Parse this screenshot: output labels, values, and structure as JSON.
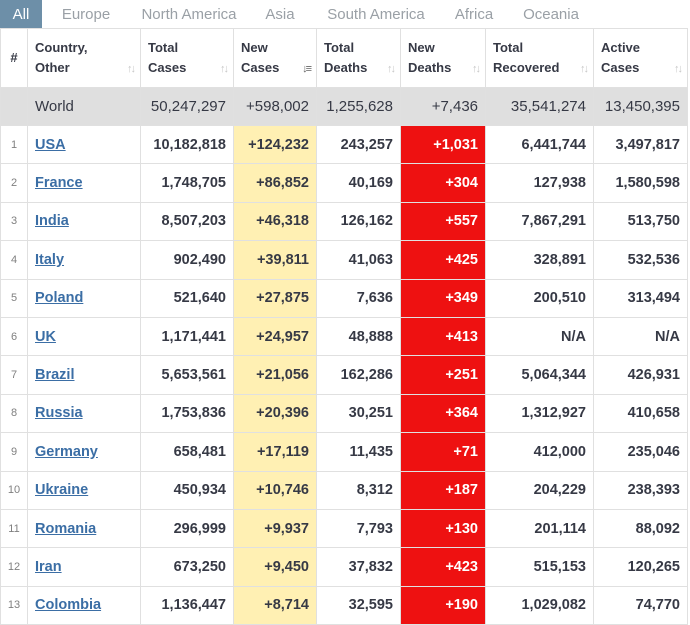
{
  "tabs": [
    "All",
    "Europe",
    "North America",
    "Asia",
    "South America",
    "Africa",
    "Oceania"
  ],
  "headers": {
    "idx": "#",
    "country": [
      "Country,",
      "Other"
    ],
    "total_cases": [
      "Total",
      "Cases"
    ],
    "new_cases": [
      "New",
      "Cases"
    ],
    "total_deaths": [
      "Total",
      "Deaths"
    ],
    "new_deaths": [
      "New",
      "Deaths"
    ],
    "total_recovered": [
      "Total",
      "Recovered"
    ],
    "active_cases": [
      "Active",
      "Cases"
    ]
  },
  "world": {
    "country": "World",
    "total_cases": "50,247,297",
    "new_cases": "+598,002",
    "total_deaths": "1,255,628",
    "new_deaths": "+7,436",
    "total_recovered": "35,541,274",
    "active_cases": "13,450,395"
  },
  "rows": [
    {
      "idx": "1",
      "country": "USA",
      "total_cases": "10,182,818",
      "new_cases": "+124,232",
      "total_deaths": "243,257",
      "new_deaths": "+1,031",
      "total_recovered": "6,441,744",
      "active_cases": "3,497,817"
    },
    {
      "idx": "2",
      "country": "France",
      "total_cases": "1,748,705",
      "new_cases": "+86,852",
      "total_deaths": "40,169",
      "new_deaths": "+304",
      "total_recovered": "127,938",
      "active_cases": "1,580,598"
    },
    {
      "idx": "3",
      "country": "India",
      "total_cases": "8,507,203",
      "new_cases": "+46,318",
      "total_deaths": "126,162",
      "new_deaths": "+557",
      "total_recovered": "7,867,291",
      "active_cases": "513,750"
    },
    {
      "idx": "4",
      "country": "Italy",
      "total_cases": "902,490",
      "new_cases": "+39,811",
      "total_deaths": "41,063",
      "new_deaths": "+425",
      "total_recovered": "328,891",
      "active_cases": "532,536"
    },
    {
      "idx": "5",
      "country": "Poland",
      "total_cases": "521,640",
      "new_cases": "+27,875",
      "total_deaths": "7,636",
      "new_deaths": "+349",
      "total_recovered": "200,510",
      "active_cases": "313,494"
    },
    {
      "idx": "6",
      "country": "UK",
      "total_cases": "1,171,441",
      "new_cases": "+24,957",
      "total_deaths": "48,888",
      "new_deaths": "+413",
      "total_recovered": "N/A",
      "active_cases": "N/A"
    },
    {
      "idx": "7",
      "country": "Brazil",
      "total_cases": "5,653,561",
      "new_cases": "+21,056",
      "total_deaths": "162,286",
      "new_deaths": "+251",
      "total_recovered": "5,064,344",
      "active_cases": "426,931"
    },
    {
      "idx": "8",
      "country": "Russia",
      "total_cases": "1,753,836",
      "new_cases": "+20,396",
      "total_deaths": "30,251",
      "new_deaths": "+364",
      "total_recovered": "1,312,927",
      "active_cases": "410,658"
    },
    {
      "idx": "9",
      "country": "Germany",
      "total_cases": "658,481",
      "new_cases": "+17,119",
      "total_deaths": "11,435",
      "new_deaths": "+71",
      "total_recovered": "412,000",
      "active_cases": "235,046"
    },
    {
      "idx": "10",
      "country": "Ukraine",
      "total_cases": "450,934",
      "new_cases": "+10,746",
      "total_deaths": "8,312",
      "new_deaths": "+187",
      "total_recovered": "204,229",
      "active_cases": "238,393"
    },
    {
      "idx": "11",
      "country": "Romania",
      "total_cases": "296,999",
      "new_cases": "+9,937",
      "total_deaths": "7,793",
      "new_deaths": "+130",
      "total_recovered": "201,114",
      "active_cases": "88,092"
    },
    {
      "idx": "12",
      "country": "Iran",
      "total_cases": "673,250",
      "new_cases": "+9,450",
      "total_deaths": "37,832",
      "new_deaths": "+423",
      "total_recovered": "515,153",
      "active_cases": "120,265"
    },
    {
      "idx": "13",
      "country": "Colombia",
      "total_cases": "1,136,447",
      "new_cases": "+8,714",
      "total_deaths": "32,595",
      "new_deaths": "+190",
      "total_recovered": "1,029,082",
      "active_cases": "74,770"
    }
  ],
  "colors": {
    "active_tab": "#6d8fa8",
    "new_cases_bg": "#fff0b3",
    "new_deaths_bg": "#ee1111",
    "world_row_bg": "#dfdfdf",
    "link": "#3b6ea5"
  },
  "icons": {
    "sort": "sort-icon",
    "sort_active": "sort-desc-icon"
  }
}
